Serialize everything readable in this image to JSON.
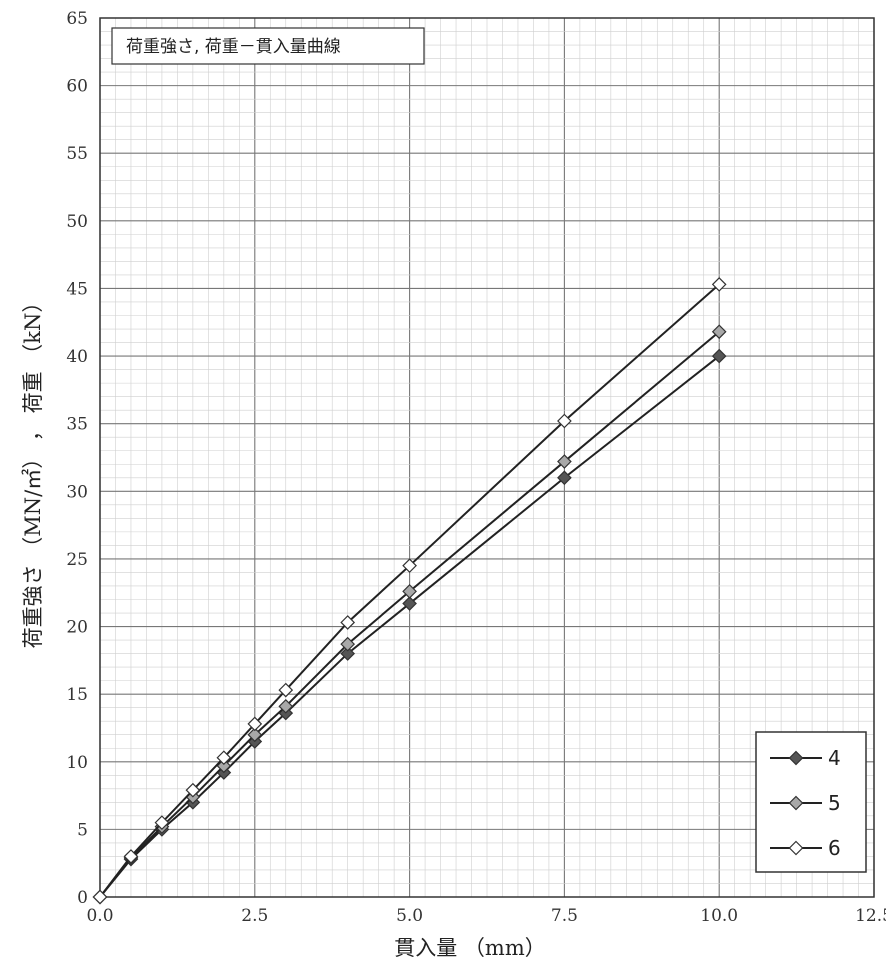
{
  "chart_data": {
    "type": "line",
    "title": "荷重強さ, 荷重－貫入量曲線",
    "xlabel": "貫入量 （mm）",
    "ylabel": "荷重強さ （MN/㎡） ， 荷重 （kN）",
    "xlim": [
      0,
      12.5
    ],
    "ylim": [
      0,
      65
    ],
    "x_ticks": [
      "0.0",
      "2.5",
      "5.0",
      "7.5",
      "10.0",
      "12.5"
    ],
    "y_ticks": [
      "0",
      "5",
      "10",
      "15",
      "20",
      "25",
      "30",
      "35",
      "40",
      "45",
      "50",
      "55",
      "60",
      "65"
    ],
    "grid": true,
    "legend_position": "bottom-right",
    "x": [
      0,
      0.5,
      1.0,
      1.5,
      2.0,
      2.5,
      3.0,
      4.0,
      5.0,
      7.5,
      10.0
    ],
    "series": [
      {
        "name": "4",
        "marker": "diamond",
        "color": "#555555",
        "values": [
          0,
          2.8,
          5.0,
          7.0,
          9.2,
          11.5,
          13.6,
          18.0,
          21.7,
          31.0,
          40.0
        ]
      },
      {
        "name": "5",
        "marker": "diamond",
        "color": "#a8a8a8",
        "values": [
          0,
          2.9,
          5.2,
          7.4,
          9.7,
          12.0,
          14.1,
          18.7,
          22.6,
          32.2,
          41.8
        ]
      },
      {
        "name": "6",
        "marker": "diamond",
        "color": "#ffffff",
        "values": [
          0,
          3.0,
          5.5,
          7.9,
          10.3,
          12.8,
          15.3,
          20.3,
          24.5,
          35.2,
          45.3
        ]
      }
    ]
  }
}
